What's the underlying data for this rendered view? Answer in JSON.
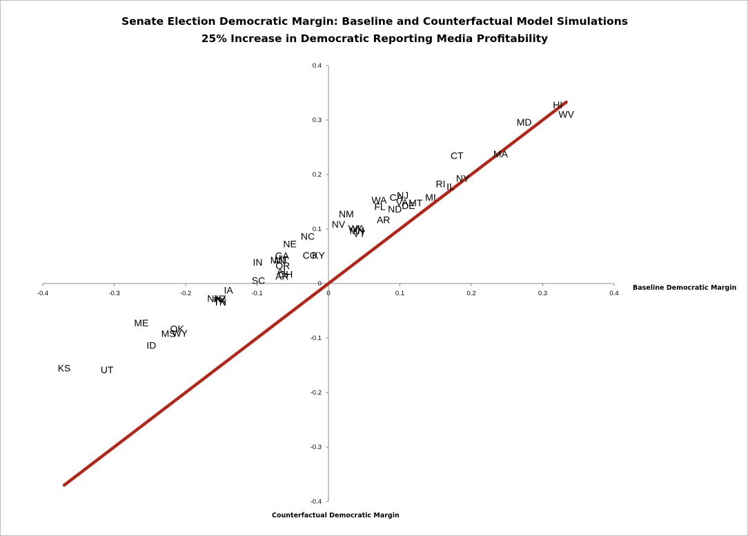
{
  "chart_data": {
    "type": "scatter",
    "title": "Senate Election Democratic Margin: Baseline and Counterfactual Model Simulations",
    "subtitle": "25% Increase in Democratic Reporting Media Profitability",
    "xlabel": "Baseline Democratic Margin",
    "ylabel": "Counterfactual Democratic Margin",
    "xlim": [
      -0.4,
      0.4
    ],
    "ylim": [
      -0.4,
      0.4
    ],
    "x_ticks": [
      "-0.4",
      "-0.3",
      "-0.2",
      "-0.1",
      "0",
      "0.1",
      "0.2",
      "0.3",
      "0.4"
    ],
    "y_ticks": [
      "0.4",
      "0.3",
      "0.2",
      "0.1",
      "0",
      "-0.1",
      "-0.2",
      "-0.3",
      "-0.4"
    ],
    "grid": false,
    "points": [
      {
        "label": "KS",
        "x": -0.37,
        "y": -0.155
      },
      {
        "label": "UT",
        "x": -0.31,
        "y": -0.158
      },
      {
        "label": "ME",
        "x": -0.262,
        "y": -0.072
      },
      {
        "label": "ID",
        "x": -0.248,
        "y": -0.113
      },
      {
        "label": "MS",
        "x": -0.224,
        "y": -0.092
      },
      {
        "label": "OK",
        "x": -0.212,
        "y": -0.083
      },
      {
        "label": "WY",
        "x": -0.208,
        "y": -0.091
      },
      {
        "label": "NH",
        "x": -0.16,
        "y": -0.027
      },
      {
        "label": "AZ",
        "x": -0.152,
        "y": -0.028
      },
      {
        "label": "TX",
        "x": -0.152,
        "y": -0.031
      },
      {
        "label": "TN",
        "x": -0.152,
        "y": -0.034
      },
      {
        "label": "IA",
        "x": -0.14,
        "y": -0.012
      },
      {
        "label": "SC",
        "x": -0.098,
        "y": 0.006
      },
      {
        "label": "IN",
        "x": -0.099,
        "y": 0.039
      },
      {
        "label": "NE",
        "x": -0.054,
        "y": 0.073
      },
      {
        "label": "GA",
        "x": -0.065,
        "y": 0.051
      },
      {
        "label": "MN",
        "x": -0.071,
        "y": 0.043
      },
      {
        "label": "MT",
        "x": -0.066,
        "y": 0.043
      },
      {
        "label": "OR",
        "x": -0.064,
        "y": 0.033
      },
      {
        "label": "AL",
        "x": -0.064,
        "y": 0.022
      },
      {
        "label": "OH",
        "x": -0.06,
        "y": 0.017
      },
      {
        "label": "AR",
        "x": -0.065,
        "y": 0.013
      },
      {
        "label": "NC",
        "x": -0.029,
        "y": 0.087
      },
      {
        "label": "CO",
        "x": -0.026,
        "y": 0.052
      },
      {
        "label": "KY",
        "x": -0.014,
        "y": 0.052
      },
      {
        "label": "NM",
        "x": 0.025,
        "y": 0.128
      },
      {
        "label": "NV",
        "x": 0.014,
        "y": 0.109
      },
      {
        "label": "WI",
        "x": 0.036,
        "y": 0.101
      },
      {
        "label": "VA",
        "x": 0.042,
        "y": 0.101
      },
      {
        "label": "MN",
        "x": 0.04,
        "y": 0.097
      },
      {
        "label": "VT",
        "x": 0.043,
        "y": 0.092
      },
      {
        "label": "WA",
        "x": 0.071,
        "y": 0.153
      },
      {
        "label": "FL",
        "x": 0.072,
        "y": 0.141
      },
      {
        "label": "AR",
        "x": 0.077,
        "y": 0.117
      },
      {
        "label": "CA",
        "x": 0.095,
        "y": 0.158
      },
      {
        "label": "NJ",
        "x": 0.104,
        "y": 0.162
      },
      {
        "label": "VA",
        "x": 0.103,
        "y": 0.149
      },
      {
        "label": "ND",
        "x": 0.093,
        "y": 0.137
      },
      {
        "label": "DE",
        "x": 0.112,
        "y": 0.143
      },
      {
        "label": "MT",
        "x": 0.122,
        "y": 0.148
      },
      {
        "label": "MI",
        "x": 0.143,
        "y": 0.158
      },
      {
        "label": "RI",
        "x": 0.157,
        "y": 0.183
      },
      {
        "label": "IL",
        "x": 0.171,
        "y": 0.178
      },
      {
        "label": "NY",
        "x": 0.188,
        "y": 0.193
      },
      {
        "label": "CT",
        "x": 0.18,
        "y": 0.235
      },
      {
        "label": "MA",
        "x": 0.241,
        "y": 0.238
      },
      {
        "label": "MD",
        "x": 0.274,
        "y": 0.296
      },
      {
        "label": "HI",
        "x": 0.321,
        "y": 0.328
      },
      {
        "label": "WV",
        "x": 0.333,
        "y": 0.311
      }
    ],
    "reference_line": {
      "x": [
        -0.37,
        0.333
      ],
      "y": [
        -0.37,
        0.333
      ],
      "color": "#c0291b"
    }
  }
}
